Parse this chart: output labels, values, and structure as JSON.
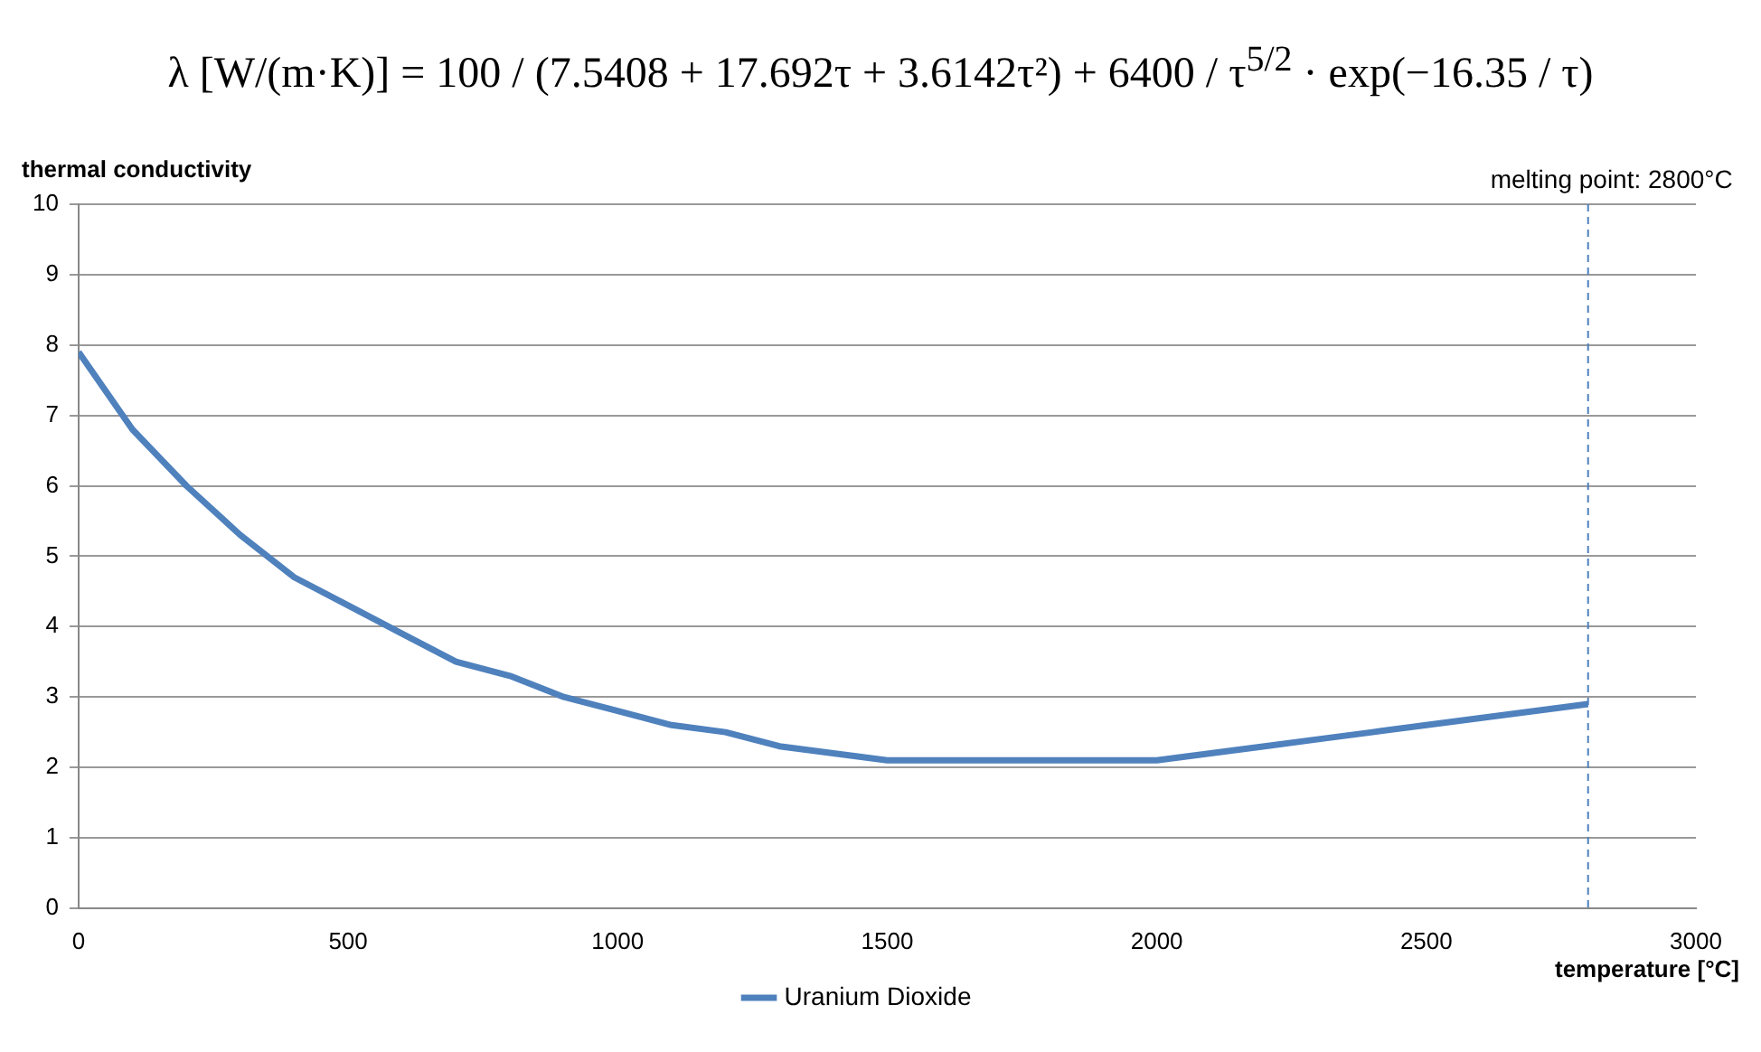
{
  "chart_data": {
    "type": "line",
    "title": "λ [W/(m·K)] = 100 / (7.5408 + 17.692τ + 3.6142τ²) + 6400 / τ$^{5/2}$ · exp(−16.35 / τ)",
    "xlabel": "temperature [°C]",
    "ylabel": "thermal conductivity",
    "x": [
      0,
      100,
      200,
      300,
      400,
      500,
      600,
      700,
      800,
      900,
      1000,
      1100,
      1200,
      1300,
      1400,
      1500,
      1600,
      1700,
      1800,
      1900,
      2000,
      2100,
      2200,
      2300,
      2400,
      2500,
      2600,
      2700,
      2800
    ],
    "series": [
      {
        "name": "Uranium Dioxide",
        "color": "#4f81bd",
        "values": [
          7.9,
          6.8,
          6.0,
          5.3,
          4.7,
          4.3,
          3.9,
          3.5,
          3.3,
          3.0,
          2.8,
          2.6,
          2.5,
          2.3,
          2.2,
          2.1,
          2.1,
          2.1,
          2.1,
          2.1,
          2.1,
          2.2,
          2.3,
          2.4,
          2.5,
          2.6,
          2.7,
          2.8,
          2.9
        ]
      }
    ],
    "xlim": [
      0,
      3000
    ],
    "xticks": [
      0,
      500,
      1000,
      1500,
      2000,
      2500,
      3000
    ],
    "ylim": [
      0,
      10
    ],
    "yticks": [
      0,
      1,
      2,
      3,
      4,
      5,
      6,
      7,
      8,
      9,
      10
    ],
    "ref_lines": [
      {
        "axis": "x",
        "value": 2800,
        "label": "melting point: 2800°C",
        "color": "#4f81bd",
        "line_style": "dashed"
      }
    ],
    "grid": "y",
    "legend": "bottom",
    "marker": "none",
    "line_style": "solid"
  }
}
